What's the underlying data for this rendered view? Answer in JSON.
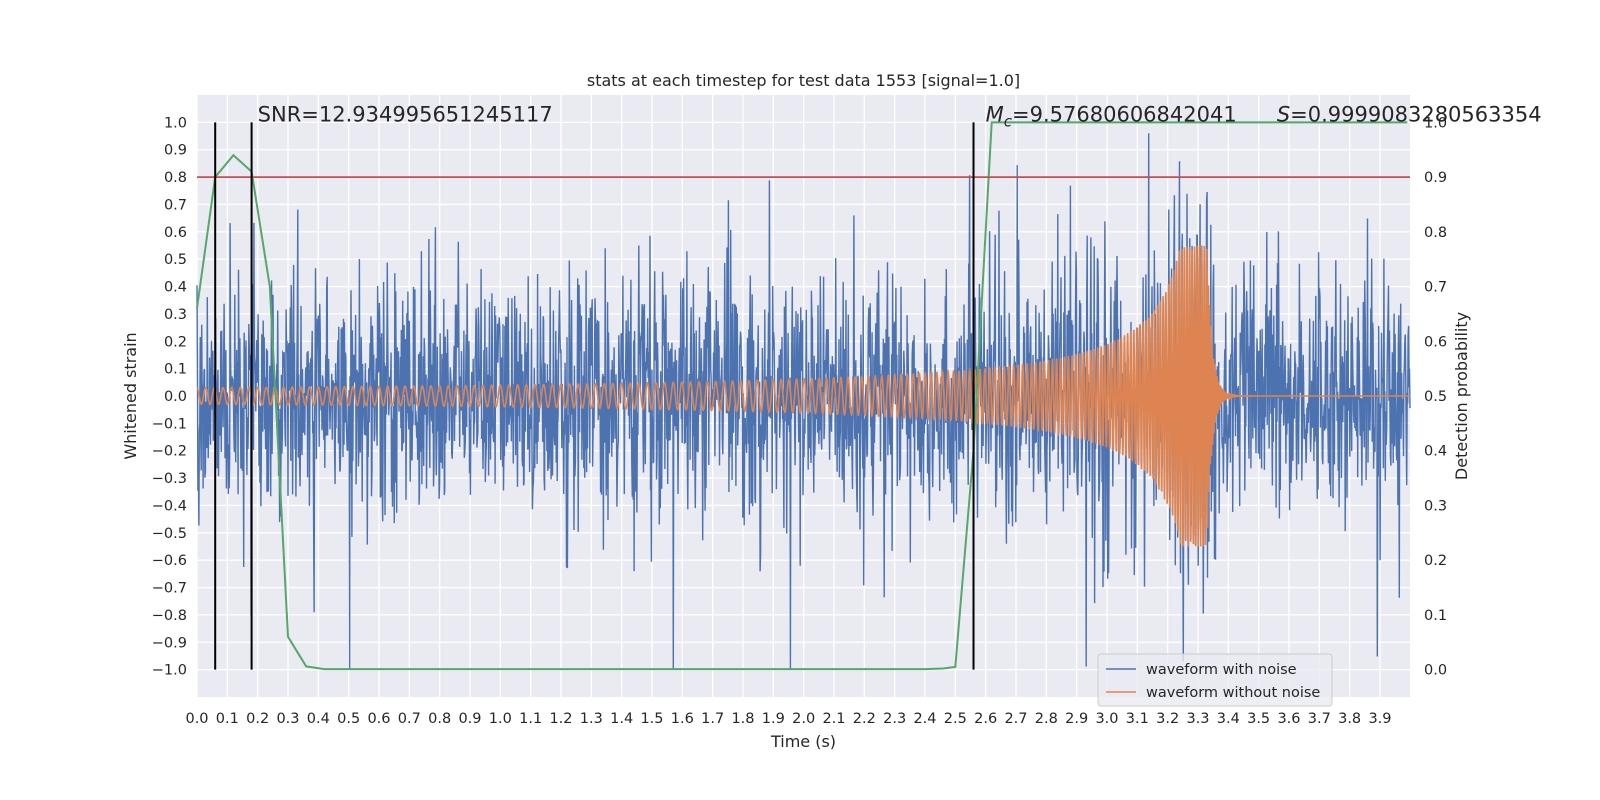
{
  "chart_data": {
    "type": "line",
    "title": "stats at each timestep for test data 1553 [signal=1.0]",
    "xlabel": "Time (s)",
    "ylabel": "Whitened strain",
    "ylabel_right": "Detection probability",
    "xlim": [
      0.0,
      3.999
    ],
    "ylim": [
      -1.1,
      1.1
    ],
    "ylim_right": [
      -0.05,
      1.05
    ],
    "xticks": [
      "0.0",
      "0.1",
      "0.2",
      "0.3",
      "0.4",
      "0.5",
      "0.6",
      "0.7",
      "0.8",
      "0.9",
      "1.0",
      "1.1",
      "1.2",
      "1.3",
      "1.4",
      "1.5",
      "1.6",
      "1.7",
      "1.8",
      "1.9",
      "2.0",
      "2.1",
      "2.2",
      "2.3",
      "2.4",
      "2.5",
      "2.6",
      "2.7",
      "2.8",
      "2.9",
      "3.0",
      "3.1",
      "3.2",
      "3.3",
      "3.4",
      "3.5",
      "3.6",
      "3.7",
      "3.8",
      "3.9"
    ],
    "yticks": [
      "1.0",
      "0.9",
      "0.8",
      "0.7",
      "0.6",
      "0.5",
      "0.4",
      "0.3",
      "0.2",
      "0.1",
      "0.0",
      "−0.1",
      "−0.2",
      "−0.3",
      "−0.4",
      "−0.5",
      "−0.6",
      "−0.7",
      "−0.8",
      "−0.9",
      "−1.0"
    ],
    "yticks_right": [
      "1.0",
      "0.9",
      "0.8",
      "0.7",
      "0.6",
      "0.5",
      "0.4",
      "0.3",
      "0.2",
      "0.1",
      "0.0"
    ],
    "grid": true,
    "legend_position": "bottom-right",
    "series": [
      {
        "name": "waveform with noise",
        "axis": "left",
        "color": "#4c72b0",
        "description_values": "noise amplitude ~0.3 typical, peaks to ~±1.0",
        "envelope": {
          "typical": 0.3,
          "max": 1.0
        }
      },
      {
        "name": "waveform without noise",
        "axis": "left",
        "color": "#dd8452",
        "chirp": {
          "amplitude_at_start": 0.03,
          "amplitude_at_merger": 0.55,
          "merger_time": 3.33,
          "frequency_start_hz": 35,
          "frequency_end_hz": 80
        }
      },
      {
        "name": "",
        "axis": "right",
        "color": "#55a868",
        "x": [
          0.0,
          0.06,
          0.12,
          0.18,
          0.24,
          0.3,
          0.36,
          0.42,
          0.48,
          2.4,
          2.46,
          2.5,
          2.56,
          2.62,
          3.99
        ],
        "y": [
          0.66,
          0.9,
          0.94,
          0.91,
          0.7,
          0.06,
          0.006,
          0.001,
          0.001,
          0.001,
          0.002,
          0.005,
          0.4,
          1.0,
          1.0
        ]
      }
    ],
    "threshold_line": {
      "axis": "right",
      "y": 0.9,
      "color": "#c44e52"
    },
    "vertical_lines": [
      0.06,
      0.18,
      2.56
    ],
    "annotations": {
      "snr": "SNR=12.934995651245117",
      "mc_symbol": "M",
      "mc_sub": "c",
      "mc_value": "=9.57680606842041",
      "s_symbol": "S",
      "s_value": "=0.9999083280563354"
    }
  }
}
